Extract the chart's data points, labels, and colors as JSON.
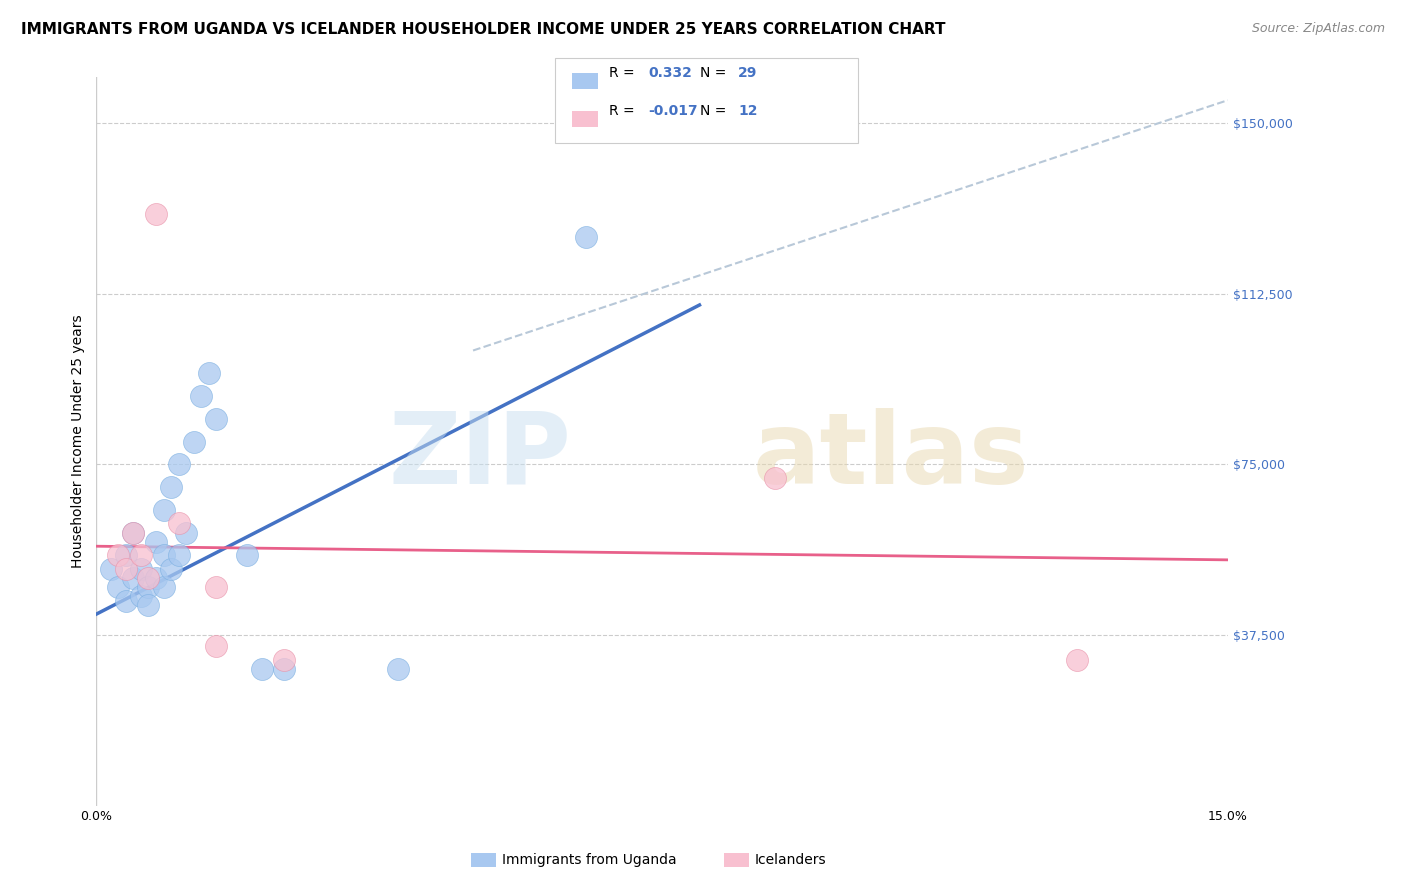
{
  "title": "IMMIGRANTS FROM UGANDA VS ICELANDER HOUSEHOLDER INCOME UNDER 25 YEARS CORRELATION CHART",
  "source": "Source: ZipAtlas.com",
  "ylabel": "Householder Income Under 25 years",
  "xmin": 0.0,
  "xmax": 0.15,
  "ymin": 0,
  "ymax": 160000,
  "y_ticks": [
    0,
    37500,
    75000,
    112500,
    150000
  ],
  "y_tick_labels": [
    "",
    "$37,500",
    "$75,000",
    "$112,500",
    "$150,000"
  ],
  "scatter_uganda": {
    "x": [
      0.002,
      0.003,
      0.004,
      0.004,
      0.005,
      0.005,
      0.006,
      0.006,
      0.007,
      0.007,
      0.008,
      0.008,
      0.009,
      0.009,
      0.009,
      0.01,
      0.01,
      0.011,
      0.011,
      0.012,
      0.013,
      0.014,
      0.015,
      0.016,
      0.02,
      0.022,
      0.025,
      0.04,
      0.065
    ],
    "y": [
      52000,
      48000,
      55000,
      45000,
      60000,
      50000,
      52000,
      46000,
      48000,
      44000,
      58000,
      50000,
      65000,
      55000,
      48000,
      70000,
      52000,
      75000,
      55000,
      60000,
      80000,
      90000,
      95000,
      85000,
      55000,
      30000,
      30000,
      30000,
      125000
    ],
    "color": "#a8c8f0",
    "edgecolor": "#7aaee0"
  },
  "scatter_iceland": {
    "x": [
      0.003,
      0.004,
      0.005,
      0.006,
      0.007,
      0.008,
      0.011,
      0.016,
      0.016,
      0.025,
      0.09,
      0.13
    ],
    "y": [
      55000,
      52000,
      60000,
      55000,
      50000,
      130000,
      62000,
      48000,
      35000,
      32000,
      72000,
      32000
    ],
    "color": "#f8c0d0",
    "edgecolor": "#e890a8"
  },
  "line_uganda": {
    "x": [
      0.0,
      0.08
    ],
    "y": [
      42000,
      110000
    ],
    "color": "#4472c4"
  },
  "line_iceland": {
    "x": [
      0.0,
      0.15
    ],
    "y": [
      57000,
      54000
    ],
    "color": "#e8608a"
  },
  "trend_dashed": {
    "x": [
      0.05,
      0.15
    ],
    "y": [
      100000,
      155000
    ],
    "color": "#b8c8d8"
  },
  "watermark_zip": "ZIP",
  "watermark_atlas": "atlas",
  "background_color": "#ffffff",
  "title_fontsize": 11,
  "axis_label_fontsize": 10,
  "tick_fontsize": 9,
  "legend_r1_label": "R =  0.332   N = 29",
  "legend_r2_label": "R = -0.017   N = 12",
  "bottom_legend_uganda": "Immigrants from Uganda",
  "bottom_legend_iceland": "Icelanders"
}
